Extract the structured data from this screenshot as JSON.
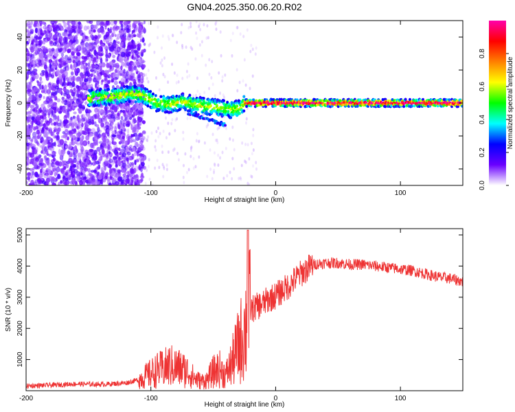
{
  "title": "GN04.2025.350.06.20.R02",
  "chart_data": [
    {
      "type": "heatmap",
      "title": "GN04.2025.350.06.20.R02",
      "xlabel": "Height of straight line (km)",
      "ylabel": "Frequency (Hz)",
      "xlim": [
        -200,
        150
      ],
      "ylim": [
        -50,
        50
      ],
      "xticks": [
        -200,
        -100,
        0,
        100
      ],
      "xtick_labels": [
        "-200",
        "-100",
        "0",
        "100"
      ],
      "yticks": [
        -40,
        -20,
        0,
        20,
        40
      ],
      "ytick_labels": [
        "-40",
        "-20",
        "0",
        "20",
        "40"
      ],
      "colorbar": {
        "label": "Normalized spectral amplitude",
        "range": [
          0,
          1
        ],
        "ticks": [
          0.0,
          0.2,
          0.4,
          0.6,
          0.8
        ],
        "tick_labels": [
          "0.0",
          "0.2",
          "0.4",
          "0.6",
          "0.8"
        ],
        "stops": [
          "#ffffff",
          "#6a00ff",
          "#0000ff",
          "#00ffff",
          "#00ff00",
          "#ffff00",
          "#ff8000",
          "#ff0000",
          "#ff00aa"
        ]
      },
      "ridge": {
        "x": [
          -150,
          -130,
          -115,
          -105,
          -95,
          -85,
          -75,
          -65,
          -55,
          -45,
          -35,
          -28,
          -25,
          0,
          150
        ],
        "y": [
          3,
          4,
          6,
          4,
          0,
          -1,
          1,
          -1,
          -2,
          -3,
          -4,
          -3,
          0,
          0,
          0
        ]
      }
    },
    {
      "type": "line",
      "xlabel": "Height of straight line (km)",
      "ylabel": "SNR (10 * v/v)",
      "xlim": [
        -200,
        150
      ],
      "ylim": [
        0,
        5200
      ],
      "xticks": [
        -200,
        -100,
        0,
        100
      ],
      "xtick_labels": [
        "-200",
        "-100",
        "0",
        "100"
      ],
      "yticks": [
        1000,
        2000,
        3000,
        4000,
        5000
      ],
      "ytick_labels": [
        "1000",
        "2000",
        "3000",
        "4000",
        "5000"
      ],
      "color": "#ee3333",
      "series": [
        {
          "name": "SNR",
          "x": [
            -200,
            -180,
            -160,
            -140,
            -120,
            -110,
            -100,
            -95,
            -90,
            -85,
            -80,
            -75,
            -70,
            -65,
            -60,
            -55,
            -50,
            -45,
            -40,
            -35,
            -30,
            -25,
            -22,
            -20,
            -15,
            -10,
            -5,
            0,
            5,
            10,
            15,
            20,
            25,
            30,
            40,
            50,
            60,
            70,
            80,
            90,
            100,
            110,
            120,
            130,
            140,
            150
          ],
          "y": [
            150,
            180,
            220,
            200,
            250,
            350,
            550,
            650,
            700,
            800,
            750,
            700,
            600,
            400,
            300,
            350,
            600,
            700,
            500,
            900,
            1400,
            1900,
            2300,
            2600,
            2700,
            2800,
            2950,
            3050,
            3200,
            3350,
            3550,
            3750,
            3900,
            4050,
            4100,
            4100,
            4050,
            4050,
            4000,
            3950,
            3900,
            3850,
            3750,
            3650,
            3600,
            3500
          ]
        }
      ]
    }
  ]
}
